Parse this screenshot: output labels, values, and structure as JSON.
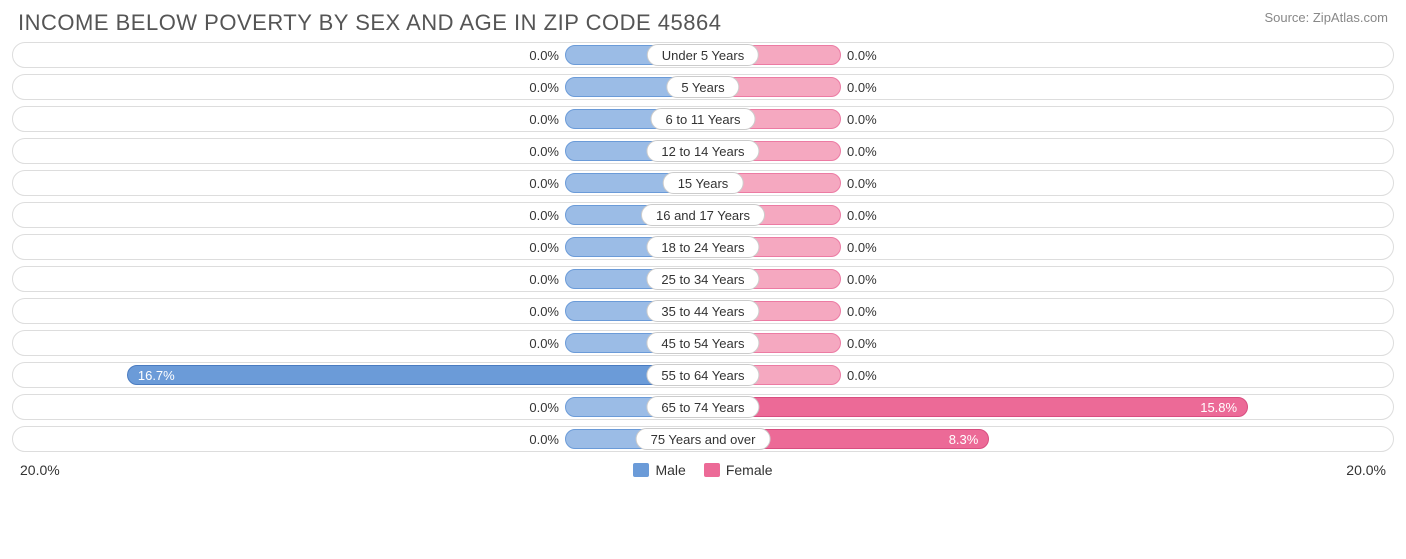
{
  "title": "INCOME BELOW POVERTY BY SEX AND AGE IN ZIP CODE 45864",
  "source": "Source: ZipAtlas.com",
  "axis_max": 20.0,
  "axis_label_left": "20.0%",
  "axis_label_right": "20.0%",
  "min_bar_width_pct": 20.0,
  "colors": {
    "male_fill": "#9bbce6",
    "male_border": "#6b9bd8",
    "male_nonzero_fill": "#6b9bd8",
    "male_nonzero_border": "#4a7bc0",
    "female_fill": "#f5a8c0",
    "female_border": "#ec7ba3",
    "female_nonzero_fill": "#ec6a97",
    "female_nonzero_border": "#d84e80",
    "row_border": "#dddddd",
    "label_border": "#cccccc",
    "text": "#333333",
    "title_text": "#555555",
    "source_text": "#888888",
    "background": "#ffffff"
  },
  "legend": {
    "male": "Male",
    "female": "Female"
  },
  "categories": [
    {
      "label": "Under 5 Years",
      "male": 0.0,
      "female": 0.0
    },
    {
      "label": "5 Years",
      "male": 0.0,
      "female": 0.0
    },
    {
      "label": "6 to 11 Years",
      "male": 0.0,
      "female": 0.0
    },
    {
      "label": "12 to 14 Years",
      "male": 0.0,
      "female": 0.0
    },
    {
      "label": "15 Years",
      "male": 0.0,
      "female": 0.0
    },
    {
      "label": "16 and 17 Years",
      "male": 0.0,
      "female": 0.0
    },
    {
      "label": "18 to 24 Years",
      "male": 0.0,
      "female": 0.0
    },
    {
      "label": "25 to 34 Years",
      "male": 0.0,
      "female": 0.0
    },
    {
      "label": "35 to 44 Years",
      "male": 0.0,
      "female": 0.0
    },
    {
      "label": "45 to 54 Years",
      "male": 0.0,
      "female": 0.0
    },
    {
      "label": "55 to 64 Years",
      "male": 16.7,
      "female": 0.0
    },
    {
      "label": "65 to 74 Years",
      "male": 0.0,
      "female": 15.8
    },
    {
      "label": "75 Years and over",
      "male": 0.0,
      "female": 8.3
    }
  ]
}
